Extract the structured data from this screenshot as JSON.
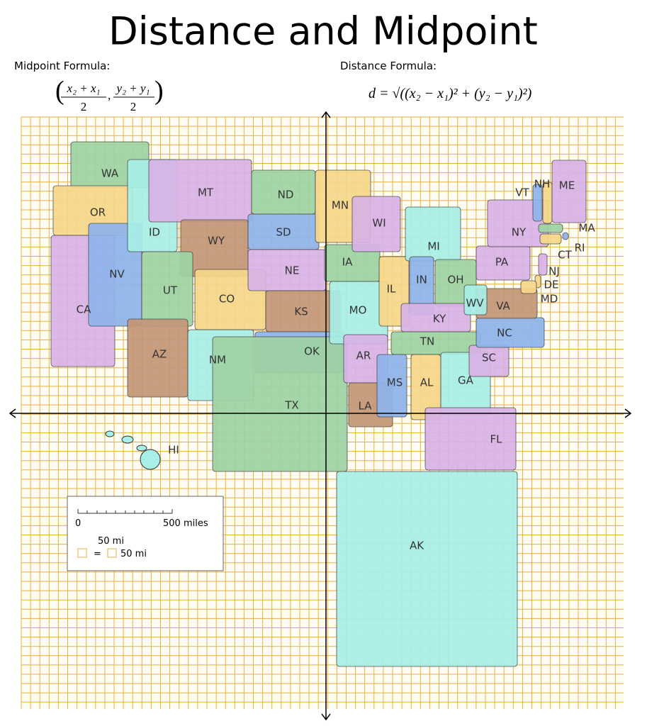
{
  "title": "Distance and Midpoint",
  "midpoint": {
    "label": "Midpoint Formula:",
    "x_numerator": "x₂ + x₁",
    "y_numerator": "y₂ + y₁",
    "x_denominator": "2",
    "y_denominator": "2"
  },
  "distance": {
    "label": "Distance Formula:",
    "formula": "d = √((x₂ − x₁)² + (y₂ − y₁)²)"
  },
  "states": [
    "WA",
    "OR",
    "CA",
    "NV",
    "ID",
    "MT",
    "WY",
    "UT",
    "CO",
    "AZ",
    "NM",
    "ND",
    "SD",
    "NE",
    "KS",
    "OK",
    "TX",
    "MN",
    "IA",
    "MO",
    "AR",
    "LA",
    "WI",
    "IL",
    "MI",
    "IN",
    "OH",
    "KY",
    "TN",
    "MS",
    "AL",
    "GA",
    "FL",
    "SC",
    "NC",
    "VA",
    "WV",
    "PA",
    "NY",
    "VT",
    "NH",
    "ME",
    "MA",
    "RI",
    "CT",
    "NJ",
    "DE",
    "MD",
    "AK",
    "HI"
  ],
  "legend": {
    "scale_start": "0",
    "scale_end": "500 miles",
    "cell_label": "50 mi",
    "equals": "=",
    "cell_value": "50 mi"
  }
}
